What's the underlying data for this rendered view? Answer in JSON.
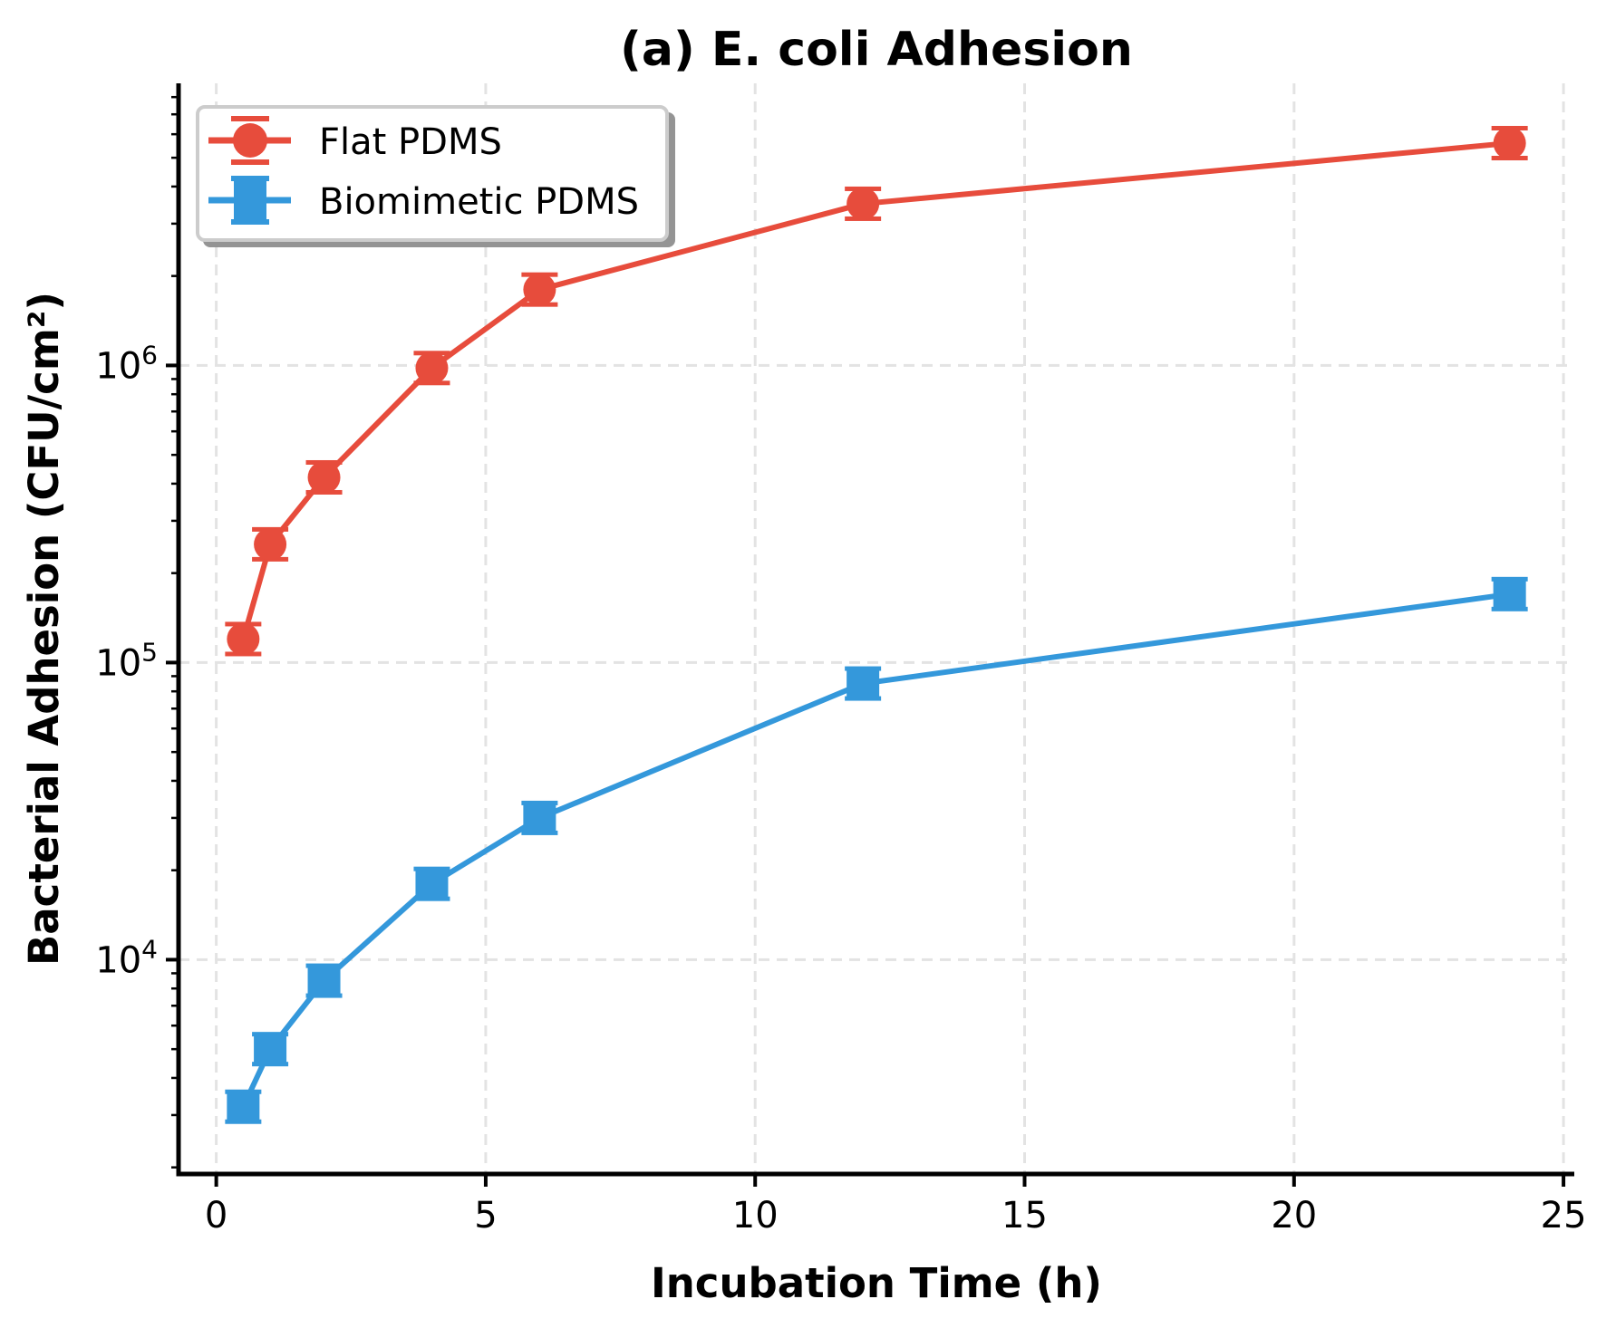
{
  "chart_data": {
    "type": "line",
    "title": "(a) E. coli Adhesion",
    "xlabel": "Incubation Time (h)",
    "ylabel": "Bacterial Adhesion (CFU/cm²)",
    "xscale": "linear",
    "yscale": "log",
    "xlim": [
      -0.7,
      25.2
    ],
    "ylim": [
      1900,
      8900000
    ],
    "x_ticks": [
      0,
      5,
      10,
      15,
      20,
      25
    ],
    "x_tick_labels": [
      "0",
      "5",
      "10",
      "15",
      "20",
      "25"
    ],
    "y_ticks": [
      10000,
      100000,
      1000000
    ],
    "y_tick_labels": [
      {
        "base": "10",
        "exp": "4"
      },
      {
        "base": "10",
        "exp": "5"
      },
      {
        "base": "10",
        "exp": "6"
      }
    ],
    "grid": true,
    "legend_position": "top-left",
    "x": [
      0.5,
      1,
      2,
      4,
      6,
      12,
      24
    ],
    "series": [
      {
        "name": "Flat PDMS",
        "color": "#e74c3c",
        "marker": "circle",
        "values": [
          120000,
          250000,
          420000,
          980000,
          1800000,
          3500000,
          5600000
        ]
      },
      {
        "name": "Biomimetic PDMS",
        "color": "#3498db",
        "marker": "square",
        "values": [
          3200,
          5000,
          8500,
          18000,
          30000,
          85000,
          170000
        ]
      }
    ]
  }
}
